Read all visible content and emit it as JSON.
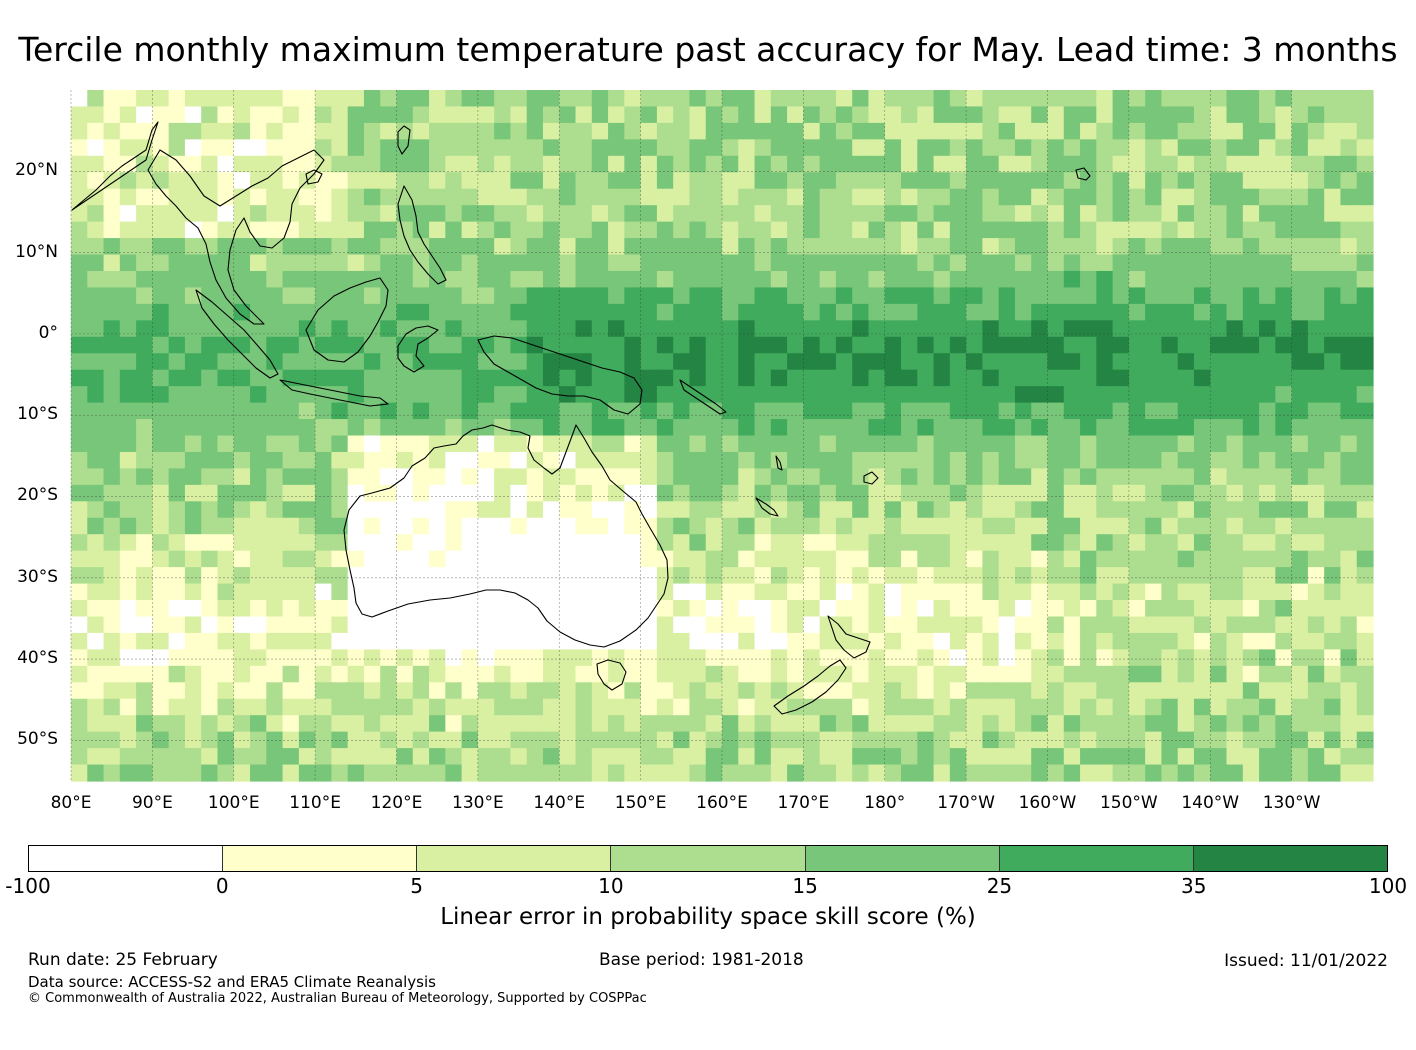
{
  "title": "Tercile monthly maximum temperature past accuracy for May. Lead time: 3 months",
  "map": {
    "lat_range": [
      -55,
      30
    ],
    "lon_range": [
      80,
      240
    ],
    "lat_ticks": [
      {
        "value": 20,
        "label": "20°N"
      },
      {
        "value": 10,
        "label": "10°N"
      },
      {
        "value": 0,
        "label": "0°"
      },
      {
        "value": -10,
        "label": "10°S"
      },
      {
        "value": -20,
        "label": "20°S"
      },
      {
        "value": -30,
        "label": "30°S"
      },
      {
        "value": -40,
        "label": "40°S"
      },
      {
        "value": -50,
        "label": "50°S"
      }
    ],
    "lon_ticks": [
      {
        "value": 80,
        "label": "80°E"
      },
      {
        "value": 90,
        "label": "90°E"
      },
      {
        "value": 100,
        "label": "100°E"
      },
      {
        "value": 110,
        "label": "110°E"
      },
      {
        "value": 120,
        "label": "120°E"
      },
      {
        "value": 130,
        "label": "130°E"
      },
      {
        "value": 140,
        "label": "140°E"
      },
      {
        "value": 150,
        "label": "150°E"
      },
      {
        "value": 160,
        "label": "160°E"
      },
      {
        "value": 170,
        "label": "170°E"
      },
      {
        "value": 180,
        "label": "180°"
      },
      {
        "value": 190,
        "label": "170°W"
      },
      {
        "value": 200,
        "label": "160°W"
      },
      {
        "value": 210,
        "label": "150°W"
      },
      {
        "value": 220,
        "label": "140°W"
      },
      {
        "value": 230,
        "label": "130°W"
      }
    ]
  },
  "colorbar": {
    "boundaries": [
      "-100",
      "0",
      "5",
      "10",
      "15",
      "25",
      "35",
      "100"
    ],
    "colors": [
      "#ffffff",
      "#ffffcc",
      "#d9f0a3",
      "#addd8e",
      "#78c679",
      "#41ab5d",
      "#238443"
    ],
    "label": "Linear error in probability space skill score (%)"
  },
  "footer": {
    "run_date": "Run date: 25 February",
    "base_period": "Base period: 1981-2018",
    "issued": "Issued: 11/01/2022",
    "data_source": "Data source: ACCESS-S2 and ERA5 Climate Reanalysis",
    "copyright": "© Commonwealth of Australia 2022, Australian Bureau of Meteorology, Supported by COSPPac"
  }
}
